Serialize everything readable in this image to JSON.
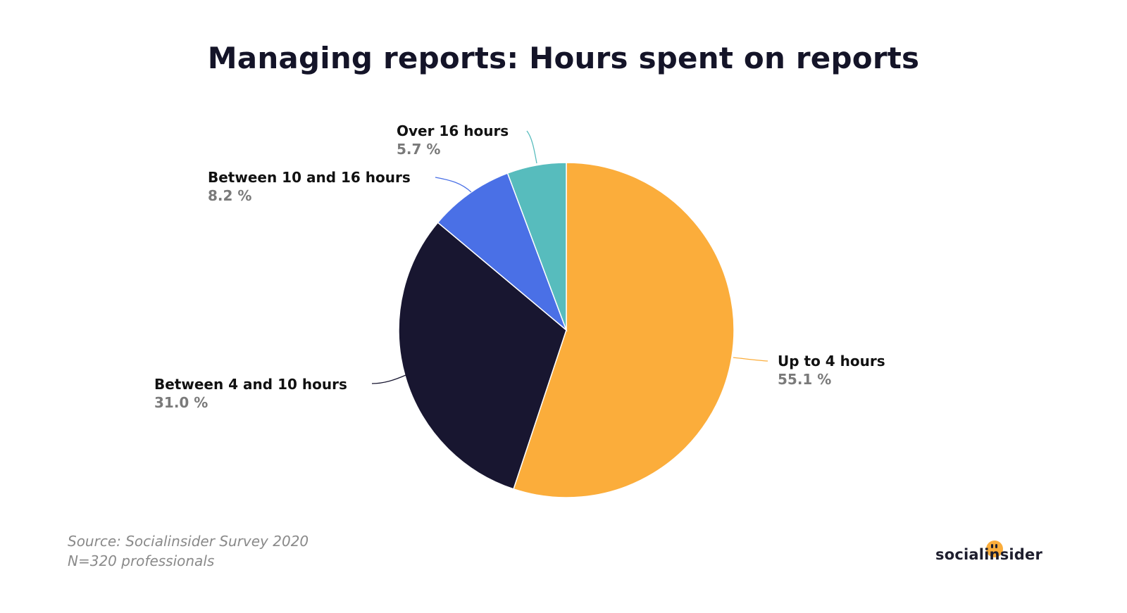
{
  "chart_data": {
    "type": "pie",
    "title": "Managing reports: Hours spent on reports",
    "slices": [
      {
        "label": "Up to 4 hours",
        "value": 55.1,
        "display": "55.1 %",
        "color": "#fbad3b"
      },
      {
        "label": "Between 4 and 10 hours",
        "value": 31.0,
        "display": "31.0 %",
        "color": "#181630"
      },
      {
        "label": "Between 10 and 16 hours",
        "value": 8.2,
        "display": "8.2 %",
        "color": "#4a70e6"
      },
      {
        "label": "Over 16 hours",
        "value": 5.7,
        "display": "5.7 %",
        "color": "#57bcbd"
      }
    ],
    "start": "12 o'clock",
    "direction": "clockwise"
  },
  "source": {
    "line1": "Source: Socialinsider Survey 2020",
    "line2": "N=320 professionals"
  },
  "logo": {
    "text": "socialinsider",
    "dot_color": "#fbad3b"
  }
}
